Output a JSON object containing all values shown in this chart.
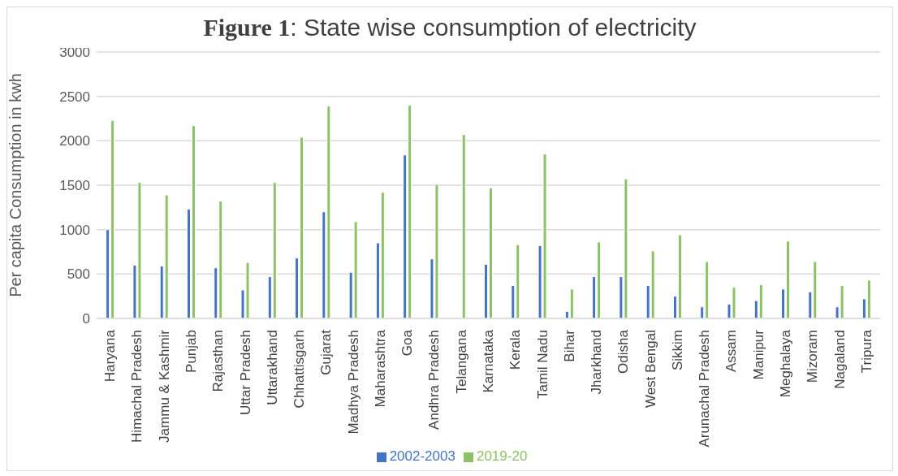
{
  "chart_data": {
    "type": "bar",
    "title": "Figure 1: State wise consumption of electricity",
    "ylabel": "Per capita Consumption in kwh",
    "categories": [
      "Haryana",
      "Himachal Pradesh",
      "Jammu & Kashmir",
      "Punjab",
      "Rajasthan",
      "Uttar Pradesh",
      "Uttarakhand",
      "Chhattisgarh",
      "Gujarat",
      "Madhya Pradesh",
      "Maharashtra",
      "Goa",
      "Andhra Pradesh",
      "Telangana",
      "Karnataka",
      "Kerala",
      "Tamil Nadu",
      "Bihar",
      "Jharkhand",
      "Odisha",
      "West Bengal",
      "Sikkim",
      "Arunachal Pradesh",
      "Assam",
      "Manipur",
      "Meghalaya",
      "Mizoram",
      "Nagaland",
      "Tripura"
    ],
    "series": [
      {
        "name": "2002-2003",
        "color": "#4472c4",
        "values": [
          1000,
          600,
          590,
          1230,
          570,
          320,
          470,
          680,
          1200,
          520,
          850,
          1840,
          670,
          null,
          610,
          370,
          820,
          80,
          470,
          470,
          370,
          250,
          130,
          160,
          200,
          330,
          300,
          130,
          220
        ]
      },
      {
        "name": "2019-20",
        "color": "#8cc168",
        "values": [
          2230,
          1530,
          1390,
          2170,
          1320,
          630,
          1530,
          2040,
          2390,
          1090,
          1420,
          2400,
          1510,
          2070,
          1470,
          830,
          1850,
          330,
          860,
          1570,
          760,
          940,
          640,
          350,
          380,
          870,
          640,
          370,
          430
        ]
      }
    ],
    "ylim": [
      0,
      3000
    ],
    "yticks": [
      0,
      500,
      1000,
      1500,
      2000,
      2500,
      3000
    ],
    "grid": "y",
    "legend": "bottom"
  }
}
